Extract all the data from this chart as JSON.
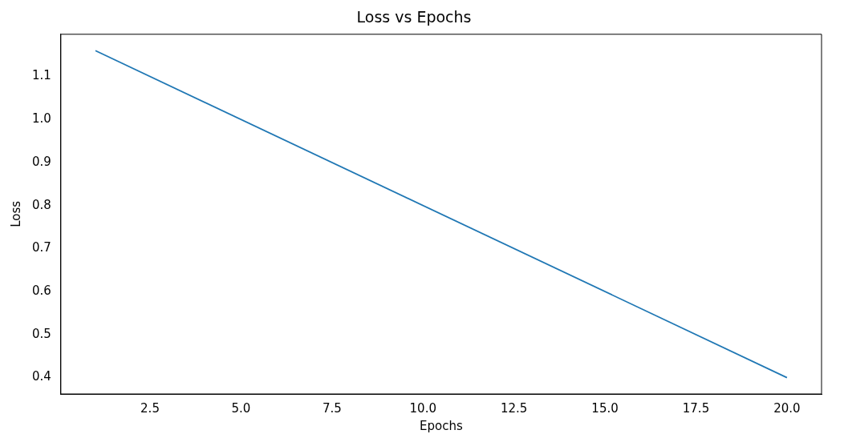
{
  "chart_data": {
    "type": "line",
    "title": "Loss vs Epochs",
    "xlabel": "Epochs",
    "ylabel": "Loss",
    "x": [
      1,
      20
    ],
    "series": [
      {
        "color": "#1f77b4",
        "values": [
          1.16,
          0.4
        ]
      }
    ],
    "xlim": [
      0.05,
      20.95
    ],
    "xticks": [
      2.5,
      {
        "value": 5,
        "label": "5.0"
      },
      7.5,
      {
        "value": 10,
        "label": "10.0"
      },
      12.5,
      {
        "value": 15,
        "label": "15.0"
      },
      17.5,
      {
        "value": 20,
        "label": "20.0"
      }
    ],
    "ylim": [
      0.362,
      1.198
    ],
    "yticks": [
      0.4,
      0.5,
      0.6,
      0.7,
      0.8,
      0.9,
      {
        "value": 1,
        "label": "1.0"
      },
      1.1
    ],
    "grid": false,
    "legend": false,
    "marker": "none",
    "line_style": "solid"
  }
}
